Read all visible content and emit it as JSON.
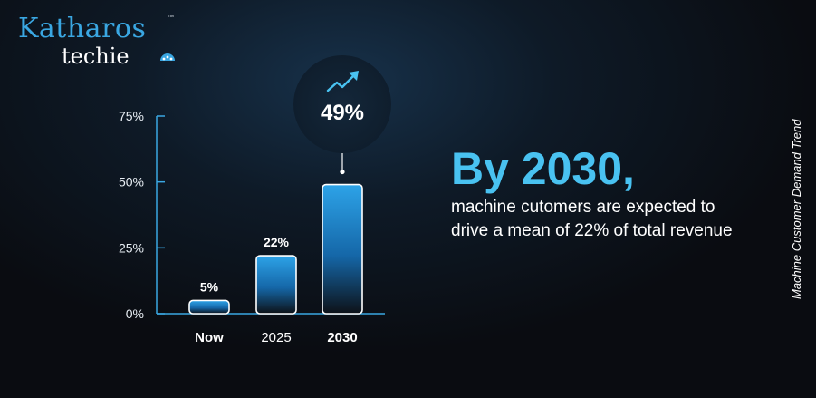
{
  "logo": {
    "name": "Katharos",
    "sub": "techie",
    "tm": "™"
  },
  "headline": "By 2030,",
  "body_text": "machine cutomers are expected to drive a mean of 22% of total revenue",
  "side_title": "Machine Customer Demand Trend",
  "colors": {
    "accent": "#49c2f1",
    "bar": "#1f8fd6",
    "axis": "#3aa7e2"
  },
  "chart_data": {
    "type": "bar",
    "categories": [
      "Now",
      "2025",
      "2030"
    ],
    "values": [
      5,
      22,
      49
    ],
    "data_labels": [
      "5%",
      "22%",
      "49%"
    ],
    "y_ticks": [
      "0%",
      "25%",
      "50%",
      "75%"
    ],
    "ylim": [
      0,
      75
    ],
    "highlight": {
      "category": "2030",
      "label": "49%",
      "icon": "trend-up-arrow-icon"
    }
  }
}
